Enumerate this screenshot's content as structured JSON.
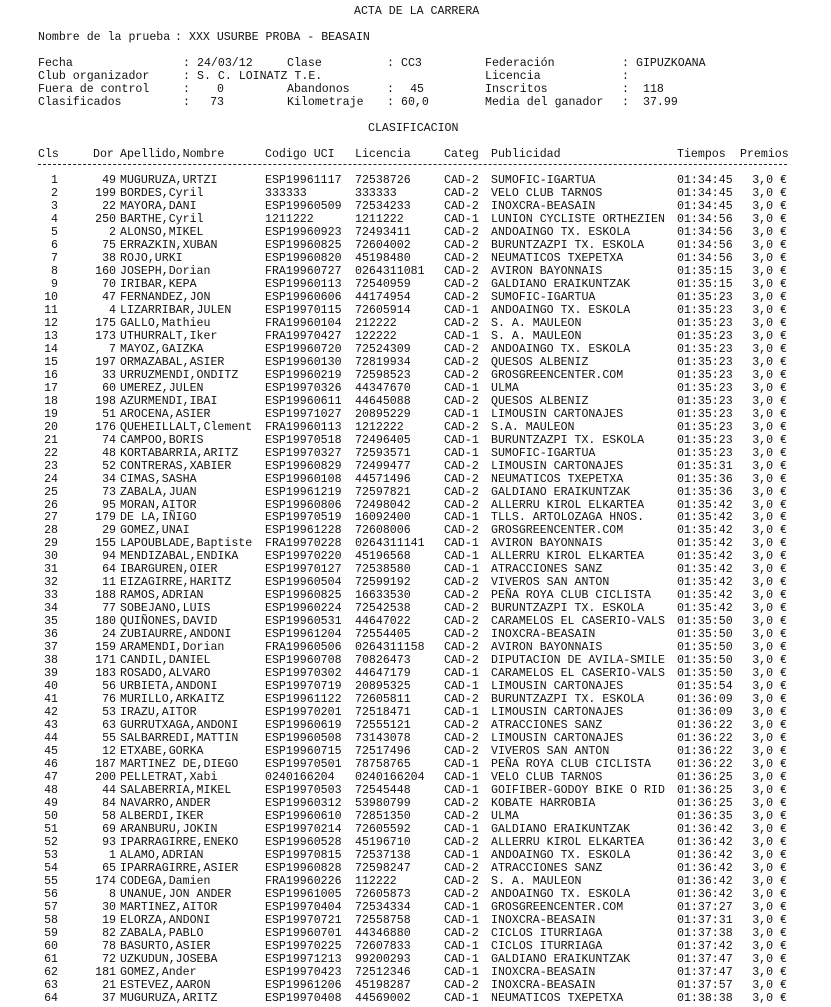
{
  "title": "ACTA DE LA CARRERA",
  "race": {
    "label": "Nombre de la prueba",
    "value": "XXX USURBE PROBA - BEASAIN"
  },
  "info": {
    "fecha": {
      "label": "Fecha",
      "value": "24/03/12"
    },
    "clase": {
      "label": "Clase",
      "value": "CC3"
    },
    "federacion": {
      "label": "Federación",
      "value": "GIPUZKOANA"
    },
    "club": {
      "label": "Club organizador",
      "value": "S. C. LOINATZ T.E."
    },
    "licencia": {
      "label": "Licencia",
      "value": ""
    },
    "fuera": {
      "label": "Fuera de control",
      "value": "0"
    },
    "abandonos": {
      "label": "Abandonos",
      "value": "45"
    },
    "inscritos": {
      "label": "Inscritos",
      "value": "118"
    },
    "clasificados": {
      "label": "Clasificados",
      "value": "73"
    },
    "kilometraje": {
      "label": "Kilometraje",
      "value": "60,0"
    },
    "media": {
      "label": "Media del ganador",
      "value": "37.99"
    }
  },
  "section_title": "CLASIFICACION",
  "columns": [
    "Cls",
    "Dor",
    "Apellido,Nombre",
    "Codigo UCI",
    "Licencia",
    "Categ",
    "Publicidad",
    "Tiempos",
    "Premios"
  ],
  "rows": [
    [
      "1",
      "49",
      "MUGURUZA,URTZI",
      "ESP19961117",
      "72538726",
      "CAD-2",
      "SUMOFIC-IGARTUA",
      "01:34:45",
      "3,0 €"
    ],
    [
      "2",
      "199",
      "BORDES,Cyril",
      "333333",
      "333333",
      "CAD-2",
      "VELO CLUB TARNOS",
      "01:34:45",
      "3,0 €"
    ],
    [
      "3",
      "22",
      "MAYORA,DANI",
      "ESP19960509",
      "72534233",
      "CAD-2",
      "INOXCRA-BEASAIN",
      "01:34:45",
      "3,0 €"
    ],
    [
      "4",
      "250",
      "BARTHE,Cyril",
      "1211222",
      "1211222",
      "CAD-1",
      "LUNION CYCLISTE ORTHEZIEN",
      "01:34:56",
      "3,0 €"
    ],
    [
      "5",
      "2",
      "ALONSO,MIKEL",
      "ESP19960923",
      "72493411",
      "CAD-2",
      "ANDOAINGO TX. ESKOLA",
      "01:34:56",
      "3,0 €"
    ],
    [
      "6",
      "75",
      "ERRAZKIN,XUBAN",
      "ESP19960825",
      "72604002",
      "CAD-2",
      "BURUNTZAZPI TX. ESKOLA",
      "01:34:56",
      "3,0 €"
    ],
    [
      "7",
      "38",
      "ROJO,URKI",
      "ESP19960820",
      "45198480",
      "CAD-2",
      "NEUMATICOS TXEPETXA",
      "01:34:56",
      "3,0 €"
    ],
    [
      "8",
      "160",
      "JOSEPH,Dorian",
      "FRA19960727",
      "0264311081",
      "CAD-2",
      "AVIRON BAYONNAIS",
      "01:35:15",
      "3,0 €"
    ],
    [
      "9",
      "70",
      "IRIBAR,KEPA",
      "ESP19960113",
      "72540959",
      "CAD-2",
      "GALDIANO ERAIKUNTZAK",
      "01:35:15",
      "3,0 €"
    ],
    [
      "10",
      "47",
      "FERNANDEZ,JON",
      "ESP19960606",
      "44174954",
      "CAD-2",
      "SUMOFIC-IGARTUA",
      "01:35:23",
      "3,0 €"
    ],
    [
      "11",
      "4",
      "LIZARRIBAR,JULEN",
      "ESP19970115",
      "72605914",
      "CAD-1",
      "ANDOAINGO TX. ESKOLA",
      "01:35:23",
      "3,0 €"
    ],
    [
      "12",
      "175",
      "GALLO,Mathieu",
      "FRA19960104",
      "212222",
      "CAD-2",
      "S. A. MAULEON",
      "01:35:23",
      "3,0 €"
    ],
    [
      "13",
      "173",
      "UTHURRALT,Iker",
      "FRA19970427",
      "122222",
      "CAD-1",
      "S. A. MAULEON",
      "01:35:23",
      "3,0 €"
    ],
    [
      "14",
      "7",
      "MAYOZ,GAIZKA",
      "ESP19960720",
      "72524309",
      "CAD-2",
      "ANDOAINGO TX. ESKOLA",
      "01:35:23",
      "3,0 €"
    ],
    [
      "15",
      "197",
      "ORMAZABAL,ASIER",
      "ESP19960130",
      "72819934",
      "CAD-2",
      "QUESOS ALBENIZ",
      "01:35:23",
      "3,0 €"
    ],
    [
      "16",
      "33",
      "URRUZMENDI,ONDITZ",
      "ESP19960219",
      "72598523",
      "CAD-2",
      "GROSGREENCENTER.COM",
      "01:35:23",
      "3,0 €"
    ],
    [
      "17",
      "60",
      "UMEREZ,JULEN",
      "ESP19970326",
      "44347670",
      "CAD-1",
      "ULMA",
      "01:35:23",
      "3,0 €"
    ],
    [
      "18",
      "198",
      "AZURMENDI,IBAI",
      "ESP19960611",
      "44645088",
      "CAD-2",
      "QUESOS ALBENIZ",
      "01:35:23",
      "3,0 €"
    ],
    [
      "19",
      "51",
      "AROCENA,ASIER",
      "ESP19971027",
      "20895229",
      "CAD-1",
      "LIMOUSIN CARTONAJES",
      "01:35:23",
      "3,0 €"
    ],
    [
      "20",
      "176",
      "QUEHEILLALT,Clement",
      "FRA19960113",
      "1212222",
      "CAD-2",
      "S.A. MAULEON",
      "01:35:23",
      "3,0 €"
    ],
    [
      "21",
      "74",
      "CAMPOO,BORIS",
      "ESP19970518",
      "72496405",
      "CAD-1",
      "BURUNTZAZPI TX. ESKOLA",
      "01:35:23",
      "3,0 €"
    ],
    [
      "22",
      "48",
      "KORTABARRIA,ARITZ",
      "ESP19970327",
      "72593571",
      "CAD-1",
      "SUMOFIC-IGARTUA",
      "01:35:23",
      "3,0 €"
    ],
    [
      "23",
      "52",
      "CONTRERAS,XABIER",
      "ESP19960829",
      "72499477",
      "CAD-2",
      "LIMOUSIN CARTONAJES",
      "01:35:31",
      "3,0 €"
    ],
    [
      "24",
      "34",
      "CIMAS,SASHA",
      "ESP19960108",
      "44571496",
      "CAD-2",
      "NEUMATICOS TXEPETXA",
      "01:35:36",
      "3,0 €"
    ],
    [
      "25",
      "73",
      "ZABALA,JUAN",
      "ESP19961219",
      "72597821",
      "CAD-2",
      "GALDIANO ERAIKUNTZAK",
      "01:35:36",
      "3,0 €"
    ],
    [
      "26",
      "95",
      "MORAN,AITOR",
      "ESP19960806",
      "72498042",
      "CAD-2",
      "ALLERRU KIROL ELKARTEA",
      "01:35:42",
      "3,0 €"
    ],
    [
      "27",
      "179",
      "DE LA,IÑIGO",
      "ESP19970519",
      "16092400",
      "CAD-1",
      "TLLS. ARTOLOZAGA HNOS.",
      "01:35:42",
      "3,0 €"
    ],
    [
      "28",
      "29",
      "GOMEZ,UNAI",
      "ESP19961228",
      "72608006",
      "CAD-2",
      "GROSGREENCENTER.COM",
      "01:35:42",
      "3,0 €"
    ],
    [
      "29",
      "155",
      "LAPOUBLADE,Baptiste",
      "FRA19970228",
      "0264311141",
      "CAD-1",
      "AVIRON BAYONNAIS",
      "01:35:42",
      "3,0 €"
    ],
    [
      "30",
      "94",
      "MENDIZABAL,ENDIKA",
      "ESP19970220",
      "45196568",
      "CAD-1",
      "ALLERRU KIROL ELKARTEA",
      "01:35:42",
      "3,0 €"
    ],
    [
      "31",
      "64",
      "IBARGUREN,OIER",
      "ESP19970127",
      "72538580",
      "CAD-1",
      "ATRACCIONES SANZ",
      "01:35:42",
      "3,0 €"
    ],
    [
      "32",
      "11",
      "EIZAGIRRE,HARITZ",
      "ESP19960504",
      "72599192",
      "CAD-2",
      "VIVEROS SAN ANTON",
      "01:35:42",
      "3,0 €"
    ],
    [
      "33",
      "188",
      "RAMOS,ADRIAN",
      "ESP19960825",
      "16633530",
      "CAD-2",
      "PEÑA ROYA CLUB CICLISTA",
      "01:35:42",
      "3,0 €"
    ],
    [
      "34",
      "77",
      "SOBEJANO,LUIS",
      "ESP19960224",
      "72542538",
      "CAD-2",
      "BURUNTZAZPI TX. ESKOLA",
      "01:35:42",
      "3,0 €"
    ],
    [
      "35",
      "180",
      "QUIÑONES,DAVID",
      "ESP19960531",
      "44647022",
      "CAD-2",
      "CARAMELOS EL CASERIO-VALS",
      "01:35:50",
      "3,0 €"
    ],
    [
      "36",
      "24",
      "ZUBIAURRE,ANDONI",
      "ESP19961204",
      "72554405",
      "CAD-2",
      "INOXCRA-BEASAIN",
      "01:35:50",
      "3,0 €"
    ],
    [
      "37",
      "159",
      "ARAMENDI,Dorian",
      "FRA19960506",
      "0264311158",
      "CAD-2",
      "AVIRON BAYONNAIS",
      "01:35:50",
      "3,0 €"
    ],
    [
      "38",
      "171",
      "CANDIL,DANIEL",
      "ESP19960708",
      "70826473",
      "CAD-2",
      "DIPUTACION DE AVILA-SMILE",
      "01:35:50",
      "3,0 €"
    ],
    [
      "39",
      "183",
      "ROSADO,ALVARO",
      "ESP19970302",
      "44647179",
      "CAD-1",
      "CARAMELOS EL CASERIO-VALS",
      "01:35:50",
      "3,0 €"
    ],
    [
      "40",
      "56",
      "URBIETA,ANDONI",
      "ESP19970719",
      "20895325",
      "CAD-1",
      "LIMOUSIN CARTONAJES",
      "01:35:54",
      "3,0 €"
    ],
    [
      "41",
      "76",
      "MURILLO,ARKAITZ",
      "ESP19961122",
      "72605811",
      "CAD-2",
      "BURUNTZAZPI TX. ESKOLA",
      "01:36:09",
      "3,0 €"
    ],
    [
      "42",
      "53",
      "IRAZU,AITOR",
      "ESP19970201",
      "72518471",
      "CAD-1",
      "LIMOUSIN CARTONAJES",
      "01:36:09",
      "3,0 €"
    ],
    [
      "43",
      "63",
      "GURRUTXAGA,ANDONI",
      "ESP19960619",
      "72555121",
      "CAD-2",
      "ATRACCIONES SANZ",
      "01:36:22",
      "3,0 €"
    ],
    [
      "44",
      "55",
      "SALBARREDI,MATTIN",
      "ESP19960508",
      "73143078",
      "CAD-2",
      "LIMOUSIN CARTONAJES",
      "01:36:22",
      "3,0 €"
    ],
    [
      "45",
      "12",
      "ETXABE,GORKA",
      "ESP19960715",
      "72517496",
      "CAD-2",
      "VIVEROS SAN ANTON",
      "01:36:22",
      "3,0 €"
    ],
    [
      "46",
      "187",
      "MARTINEZ DE,DIEGO",
      "ESP19970501",
      "78758765",
      "CAD-1",
      "PEÑA ROYA CLUB CICLISTA",
      "01:36:22",
      "3,0 €"
    ],
    [
      "47",
      "200",
      "PELLETRAT,Xabi",
      "0240166204",
      "0240166204",
      "CAD-1",
      "VELO CLUB TARNOS",
      "01:36:25",
      "3,0 €"
    ],
    [
      "48",
      "44",
      "SALABERRIA,MIKEL",
      "ESP19970503",
      "72545448",
      "CAD-1",
      "GOIFIBER-GODOY BIKE O RID",
      "01:36:25",
      "3,0 €"
    ],
    [
      "49",
      "84",
      "NAVARRO,ANDER",
      "ESP19960312",
      "53980799",
      "CAD-2",
      "KOBATE HARROBIA",
      "01:36:25",
      "3,0 €"
    ],
    [
      "50",
      "58",
      "ALBERDI,IKER",
      "ESP19960610",
      "72851350",
      "CAD-2",
      "ULMA",
      "01:36:35",
      "3,0 €"
    ],
    [
      "51",
      "69",
      "ARANBURU,JOKIN",
      "ESP19970214",
      "72605592",
      "CAD-1",
      "GALDIANO ERAIKUNTZAK",
      "01:36:42",
      "3,0 €"
    ],
    [
      "52",
      "93",
      "IPARRAGIRRE,ENEKO",
      "ESP19960528",
      "45196710",
      "CAD-2",
      "ALLERRU KIROL ELKARTEA",
      "01:36:42",
      "3,0 €"
    ],
    [
      "53",
      "1",
      "ALAMO,ADRIAN",
      "ESP19970815",
      "72537138",
      "CAD-1",
      "ANDOAINGO TX. ESKOLA",
      "01:36:42",
      "3,0 €"
    ],
    [
      "54",
      "65",
      "IPARRAGIRRE,ASIER",
      "ESP19960828",
      "72598247",
      "CAD-2",
      "ATRACCIONES SANZ",
      "01:36:42",
      "3,0 €"
    ],
    [
      "55",
      "174",
      "CODEGA,Damien",
      "FRA19960226",
      "112222",
      "CAD-2",
      "S. A. MAULEON",
      "01:36:42",
      "3,0 €"
    ],
    [
      "56",
      "8",
      "UNANUE,JON ANDER",
      "ESP19961005",
      "72605873",
      "CAD-2",
      "ANDOAINGO TX. ESKOLA",
      "01:36:42",
      "3,0 €"
    ],
    [
      "57",
      "30",
      "MARTINEZ,AITOR",
      "ESP19970404",
      "72534334",
      "CAD-1",
      "GROSGREENCENTER.COM",
      "01:37:27",
      "3,0 €"
    ],
    [
      "58",
      "19",
      "ELORZA,ANDONI",
      "ESP19970721",
      "72558758",
      "CAD-1",
      "INOXCRA-BEASAIN",
      "01:37:31",
      "3,0 €"
    ],
    [
      "59",
      "82",
      "ZABALA,PABLO",
      "ESP19960701",
      "44346880",
      "CAD-2",
      "CICLOS ITURRIAGA",
      "01:37:38",
      "3,0 €"
    ],
    [
      "60",
      "78",
      "BASURTO,ASIER",
      "ESP19970225",
      "72607833",
      "CAD-1",
      "CICLOS ITURRIAGA",
      "01:37:42",
      "3,0 €"
    ],
    [
      "61",
      "72",
      "UZKUDUN,JOSEBA",
      "ESP19971213",
      "99200293",
      "CAD-1",
      "GALDIANO ERAIKUNTZAK",
      "01:37:47",
      "3,0 €"
    ],
    [
      "62",
      "181",
      "GOMEZ,Ander",
      "ESP19970423",
      "72512346",
      "CAD-1",
      "INOXCRA-BEASAIN",
      "01:37:47",
      "3,0 €"
    ],
    [
      "63",
      "21",
      "ESTEVEZ,AARON",
      "ESP19961206",
      "45198287",
      "CAD-2",
      "INOXCRA-BEASAIN",
      "01:37:57",
      "3,0 €"
    ],
    [
      "64",
      "37",
      "MUGURUZA,ARITZ",
      "ESP19970408",
      "44569002",
      "CAD-1",
      "NEUMATICOS TXEPETXA",
      "01:38:38",
      "3,0 €"
    ]
  ]
}
